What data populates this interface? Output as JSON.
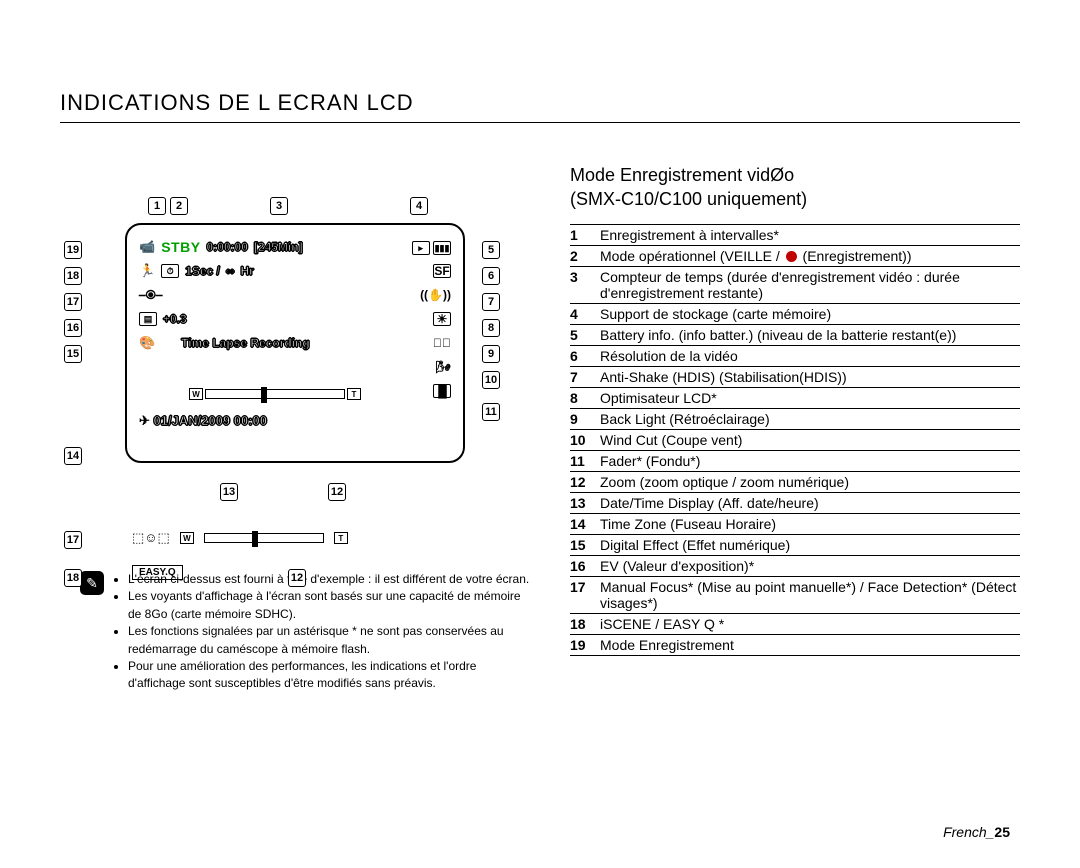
{
  "title": "INDICATIONS DE L ECRAN LCD",
  "page_label_prefix": "French_",
  "page_number": "25",
  "subhead_line1": "Mode Enregistrement vidØo",
  "subhead_line2": "(SMX-C10/C100 uniquement)",
  "lcd": {
    "stby": "STBY",
    "timer": "0:00:00",
    "remain": "[245Min]",
    "interval": "1Sec /",
    "interval_hr": "Hr",
    "ev": "+0.3",
    "center_msg": "Time Lapse Recording",
    "datetime": "01/JAN/2009 00:00",
    "w": "W",
    "t": "T",
    "easyq": "EASY.Q",
    "infinity": "∞"
  },
  "callouts": {
    "1": "1",
    "2": "2",
    "3": "3",
    "4": "4",
    "5": "5",
    "6": "6",
    "7": "7",
    "8": "8",
    "9": "9",
    "10": "10",
    "11": "11",
    "12": "12",
    "13": "13",
    "14": "14",
    "15": "15",
    "16": "16",
    "17": "17",
    "18": "18",
    "19": "19"
  },
  "legend": [
    {
      "n": "1",
      "t": "Enregistrement à intervalles*"
    },
    {
      "n": "2",
      "t": "Mode opérationnel (VEILLE / ● (Enregistrement))",
      "hasdot": true
    },
    {
      "n": "3",
      "t": "Compteur de temps (durée d'enregistrement vidéo : durée d'enregistrement restante)"
    },
    {
      "n": "4",
      "t": "Support de stockage (carte mémoire)"
    },
    {
      "n": "5",
      "t": "Battery info. (info batter.) (niveau de la batterie restant(e))"
    },
    {
      "n": "6",
      "t": "Résolution de la vidéo"
    },
    {
      "n": "7",
      "t": "Anti-Shake (HDIS) (Stabilisation(HDIS))"
    },
    {
      "n": "8",
      "t": "Optimisateur LCD*"
    },
    {
      "n": "9",
      "t": "Back Light (Rétroéclairage)"
    },
    {
      "n": "10",
      "t": "Wind Cut (Coupe vent)"
    },
    {
      "n": "11",
      "t": "Fader* (Fondu*)"
    },
    {
      "n": "12",
      "t": "Zoom (zoom optique / zoom numérique)"
    },
    {
      "n": "13",
      "t": "Date/Time Display (Aff. date/heure)"
    },
    {
      "n": "14",
      "t": "Time Zone (Fuseau Horaire)"
    },
    {
      "n": "15",
      "t": "Digital Effect (Effet numérique)"
    },
    {
      "n": "16",
      "t": "EV (Valeur d'exposition)*"
    },
    {
      "n": "17",
      "t": "Manual Focus* (Mise au point manuelle*) / Face Detection* (Détect visages*)"
    },
    {
      "n": "18",
      "t": "iSCENE / EASY Q *"
    },
    {
      "n": "19",
      "t": "Mode Enregistrement"
    }
  ],
  "notes": [
    "L'écran ci-dessus est fourni à titre d'exemple : il est différent de votre écran.",
    "Les voyants d'affichage à l'écran sont basés sur une capacité de mémoire de 8Go (carte mémoire SDHC).",
    "Les fonctions signalées par un astérisque * ne sont pas conservées au redémarrage du caméscope à mémoire flash.",
    "Pour une amélioration des performances, les indications et l'ordre d'affichage sont susceptibles d'être modifiés sans préavis."
  ]
}
